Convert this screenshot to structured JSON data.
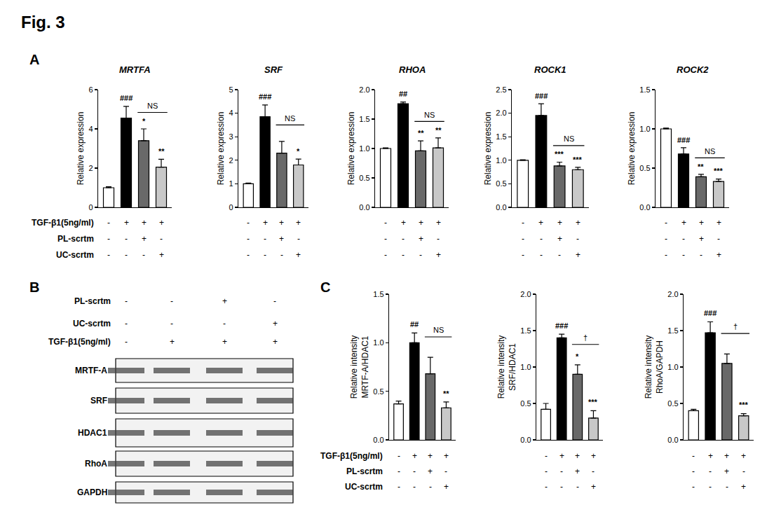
{
  "title": "Fig. 3",
  "condition_labels": {
    "A": [
      "TGF-β1(5ng/ml)",
      "PL-scrtm",
      "UC-scrtm"
    ],
    "C": [
      "TGF-β1(5ng/ml)",
      "PL-scrtm",
      "UC-scrtm"
    ]
  },
  "chart_data": [
    {
      "panel": "A",
      "type": "bar",
      "title": "MRTFA",
      "y_label": "Relative expression",
      "categories": [
        null,
        null,
        null,
        null
      ],
      "values": [
        1.0,
        4.55,
        3.4,
        2.05
      ],
      "errors": [
        0.05,
        0.6,
        0.6,
        0.4
      ],
      "colors": [
        "#ffffff",
        "#000000",
        "#696969",
        "#c8c8c8"
      ],
      "annotations": [
        null,
        "###",
        "*",
        "**"
      ],
      "bracket": {
        "between": [
          2,
          3
        ],
        "text": "NS"
      },
      "conditions": [
        [
          "-",
          "+",
          "+",
          "+"
        ],
        [
          "-",
          "-",
          "+",
          "-"
        ],
        [
          "-",
          "-",
          "-",
          "+"
        ]
      ],
      "ylim": [
        0,
        6
      ],
      "yticks": [
        0,
        2,
        4,
        6
      ],
      "grid": false
    },
    {
      "panel": "A",
      "type": "bar",
      "title": "SRF",
      "y_label": "Relative expression",
      "categories": [
        null,
        null,
        null,
        null
      ],
      "values": [
        1.0,
        3.85,
        2.3,
        1.8
      ],
      "errors": [
        0.03,
        0.5,
        0.5,
        0.25
      ],
      "colors": [
        "#ffffff",
        "#000000",
        "#696969",
        "#c8c8c8"
      ],
      "annotations": [
        null,
        "###",
        null,
        "*"
      ],
      "bracket": {
        "between": [
          2,
          3
        ],
        "text": "NS"
      },
      "conditions": [
        [
          "-",
          "+",
          "+",
          "+"
        ],
        [
          "-",
          "-",
          "+",
          "-"
        ],
        [
          "-",
          "-",
          "-",
          "+"
        ]
      ],
      "ylim": [
        0,
        5
      ],
      "yticks": [
        0,
        1,
        2,
        3,
        4,
        5
      ],
      "grid": false
    },
    {
      "panel": "A",
      "type": "bar",
      "title": "RHOA",
      "y_label": "Relative expression",
      "categories": [
        null,
        null,
        null,
        null
      ],
      "values": [
        1.0,
        1.76,
        0.96,
        1.01
      ],
      "errors": [
        0.01,
        0.03,
        0.17,
        0.17
      ],
      "colors": [
        "#ffffff",
        "#000000",
        "#696969",
        "#c8c8c8"
      ],
      "annotations": [
        null,
        "##",
        "**",
        "**"
      ],
      "bracket": {
        "between": [
          2,
          3
        ],
        "text": "NS"
      },
      "conditions": [
        [
          "-",
          "+",
          "+",
          "+"
        ],
        [
          "-",
          "-",
          "+",
          "-"
        ],
        [
          "-",
          "-",
          "-",
          "+"
        ]
      ],
      "ylim": [
        0,
        2
      ],
      "yticks": [
        {
          "value": 0,
          "label": "0.0"
        },
        0.5,
        {
          "value": 1,
          "label": "1.0"
        },
        1.5,
        {
          "value": 2,
          "label": "2.0"
        }
      ],
      "grid": false
    },
    {
      "panel": "A",
      "type": "bar",
      "title": "ROCK1",
      "y_label": "Relative expression",
      "categories": [
        null,
        null,
        null,
        null
      ],
      "values": [
        1.0,
        1.95,
        0.88,
        0.8
      ],
      "errors": [
        0.01,
        0.25,
        0.08,
        0.05
      ],
      "colors": [
        "#ffffff",
        "#000000",
        "#696969",
        "#c8c8c8"
      ],
      "annotations": [
        null,
        "###",
        "***",
        "***"
      ],
      "bracket": {
        "between": [
          2,
          3
        ],
        "text": "NS"
      },
      "conditions": [
        [
          "-",
          "+",
          "+",
          "+"
        ],
        [
          "-",
          "-",
          "+",
          "-"
        ],
        [
          "-",
          "-",
          "-",
          "+"
        ]
      ],
      "ylim": [
        0,
        2.5
      ],
      "yticks": [
        {
          "value": 0,
          "label": "0.0"
        },
        0.5,
        {
          "value": 1,
          "label": "1.0"
        },
        1.5,
        {
          "value": 2,
          "label": "2.0"
        },
        2.5
      ],
      "grid": false
    },
    {
      "panel": "A",
      "type": "bar",
      "title": "ROCK2",
      "y_label": "Relative expression",
      "categories": [
        null,
        null,
        null,
        null
      ],
      "values": [
        1.0,
        0.68,
        0.39,
        0.33
      ],
      "errors": [
        0.01,
        0.08,
        0.03,
        0.03
      ],
      "colors": [
        "#ffffff",
        "#000000",
        "#696969",
        "#c8c8c8"
      ],
      "annotations": [
        null,
        "###",
        "**",
        "***"
      ],
      "bracket": {
        "between": [
          2,
          3
        ],
        "text": "NS"
      },
      "conditions": [
        [
          "-",
          "+",
          "+",
          "+"
        ],
        [
          "-",
          "-",
          "+",
          "-"
        ],
        [
          "-",
          "-",
          "-",
          "+"
        ]
      ],
      "ylim": [
        0,
        1.5
      ],
      "yticks": [
        {
          "value": 0,
          "label": "0.0"
        },
        0.5,
        {
          "value": 1,
          "label": "1.0"
        },
        1.5
      ],
      "grid": false
    },
    {
      "panel": "C",
      "type": "bar",
      "y_label": "Relative intensity\nMRTF-A/HDAC1",
      "categories": [
        null,
        null,
        null,
        null
      ],
      "values": [
        0.37,
        1.0,
        0.68,
        0.33
      ],
      "errors": [
        0.03,
        0.1,
        0.17,
        0.06
      ],
      "colors": [
        "#ffffff",
        "#000000",
        "#696969",
        "#c8c8c8"
      ],
      "annotations": [
        null,
        "##",
        null,
        "**"
      ],
      "bracket": {
        "between": [
          2,
          3
        ],
        "text": "NS"
      },
      "conditions": [
        [
          "-",
          "+",
          "+",
          "+"
        ],
        [
          "-",
          "-",
          "+",
          "-"
        ],
        [
          "-",
          "-",
          "-",
          "+"
        ]
      ],
      "ylim": [
        0,
        1.5
      ],
      "yticks": [
        {
          "value": 0,
          "label": "0.0"
        },
        0.5,
        {
          "value": 1,
          "label": "1.0"
        },
        1.5
      ],
      "grid": false
    },
    {
      "panel": "C",
      "type": "bar",
      "y_label": "Relative intensity\nSRF/HDAC1",
      "categories": [
        null,
        null,
        null,
        null
      ],
      "values": [
        0.42,
        1.4,
        0.9,
        0.3
      ],
      "errors": [
        0.08,
        0.05,
        0.13,
        0.1
      ],
      "colors": [
        "#ffffff",
        "#000000",
        "#696969",
        "#c8c8c8"
      ],
      "annotations": [
        null,
        "###",
        "*",
        "***"
      ],
      "bracket": {
        "between": [
          2,
          3
        ],
        "text": "†"
      },
      "conditions": [
        [
          "-",
          "+",
          "+",
          "+"
        ],
        [
          "-",
          "-",
          "+",
          "-"
        ],
        [
          "-",
          "-",
          "-",
          "+"
        ]
      ],
      "ylim": [
        0,
        2
      ],
      "yticks": [
        {
          "value": 0,
          "label": "0.0"
        },
        0.5,
        {
          "value": 1,
          "label": "1.0"
        },
        1.5,
        {
          "value": 2,
          "label": "2.0"
        }
      ],
      "grid": false
    },
    {
      "panel": "C",
      "type": "bar",
      "y_label": "Relative intensity\nRhoA/GAPDH",
      "categories": [
        null,
        null,
        null,
        null
      ],
      "values": [
        0.4,
        1.47,
        1.05,
        0.33
      ],
      "errors": [
        0.02,
        0.15,
        0.13,
        0.03
      ],
      "colors": [
        "#ffffff",
        "#000000",
        "#696969",
        "#c8c8c8"
      ],
      "annotations": [
        null,
        "###",
        null,
        "***"
      ],
      "bracket": {
        "between": [
          2,
          3
        ],
        "text": "†"
      },
      "conditions": [
        [
          "-",
          "+",
          "+",
          "+"
        ],
        [
          "-",
          "-",
          "+",
          "-"
        ],
        [
          "-",
          "-",
          "-",
          "+"
        ]
      ],
      "ylim": [
        0,
        2
      ],
      "yticks": [
        {
          "value": 0,
          "label": "0.0"
        },
        0.5,
        {
          "value": 1,
          "label": "1.0"
        },
        1.5,
        {
          "value": 2,
          "label": "2.0"
        }
      ],
      "grid": false
    }
  ],
  "blot": {
    "panel": "B",
    "conditions": [
      {
        "label": "PL-scrtm",
        "marks": [
          "-",
          "-",
          "+",
          "-"
        ]
      },
      {
        "label": "UC-scrtm",
        "marks": [
          "-",
          "-",
          "-",
          "+"
        ]
      },
      {
        "label": "TGF-β1(5ng/ml)",
        "marks": [
          "-",
          "+",
          "+",
          "+"
        ]
      }
    ],
    "rows": [
      "MRTF-A",
      "SRF",
      "HDAC1",
      "RhoA",
      "GAPDH"
    ]
  }
}
